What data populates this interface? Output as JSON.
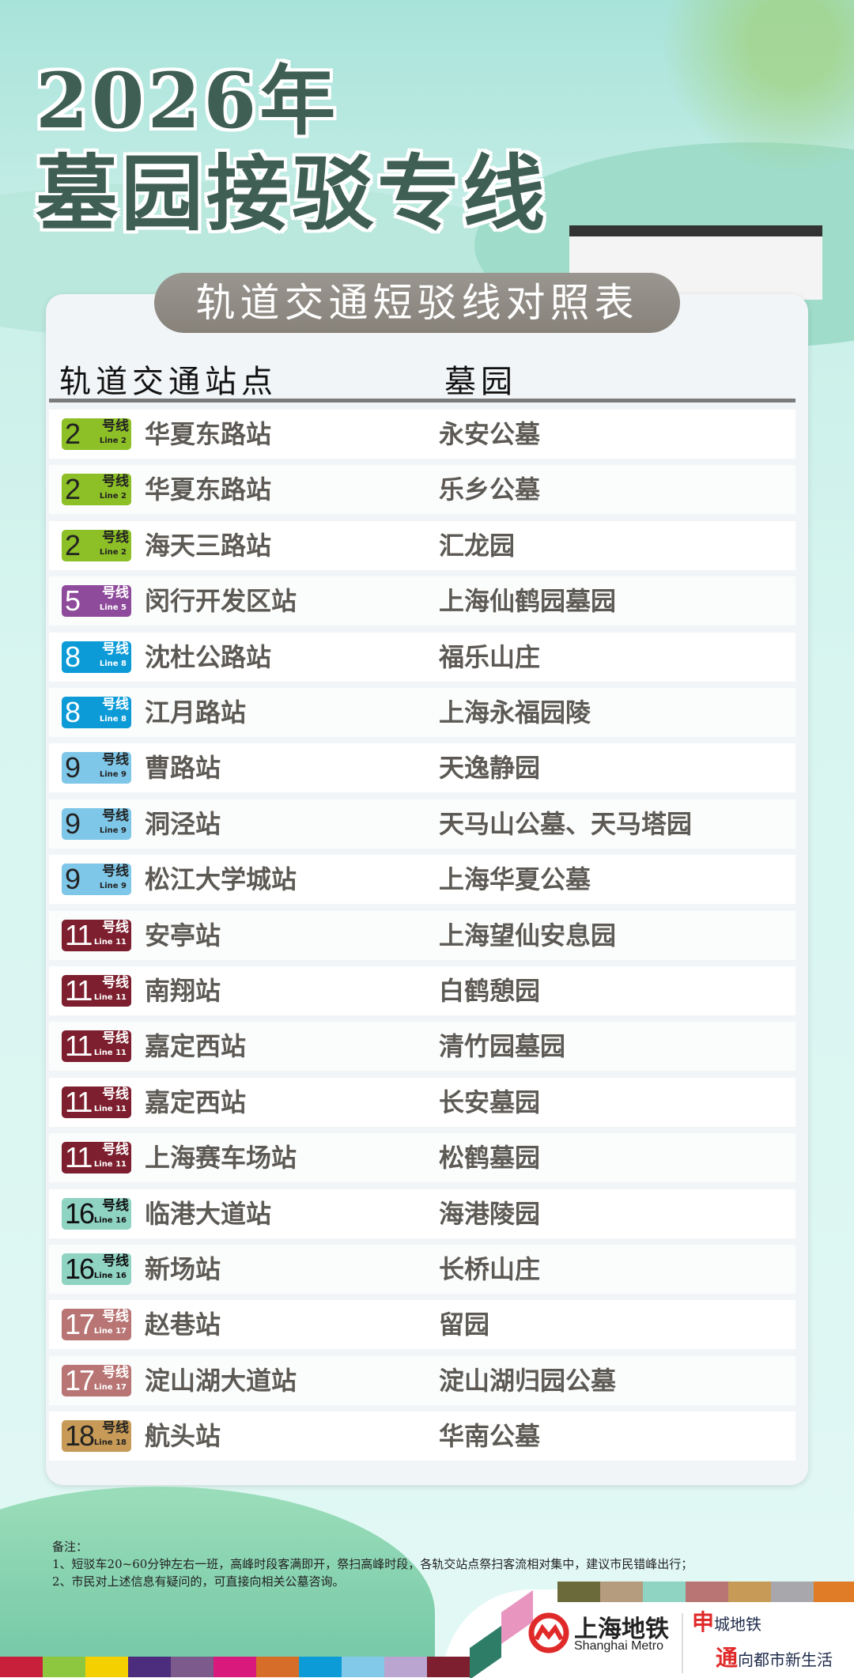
{
  "title": {
    "year": "2026年",
    "main": "墓园接驳专线"
  },
  "table": {
    "title": "轨道交通短驳线对照表",
    "col_station": "轨道交通站点",
    "col_cemetery": "墓园",
    "rows": [
      {
        "line": "2",
        "line_zh": "号线",
        "line_en": "Line 2",
        "color": "#8dbf27",
        "text": "#222",
        "station": "华夏东路站",
        "cemetery": "永安公墓"
      },
      {
        "line": "2",
        "line_zh": "号线",
        "line_en": "Line 2",
        "color": "#8dbf27",
        "text": "#222",
        "station": "华夏东路站",
        "cemetery": "乐乡公墓"
      },
      {
        "line": "2",
        "line_zh": "号线",
        "line_en": "Line 2",
        "color": "#8dbf27",
        "text": "#222",
        "station": "海天三路站",
        "cemetery": "汇龙园"
      },
      {
        "line": "5",
        "line_zh": "号线",
        "line_en": "Line 5",
        "color": "#8f4b9b",
        "text": "#fff",
        "station": "闵行开发区站",
        "cemetery": "上海仙鹤园墓园"
      },
      {
        "line": "8",
        "line_zh": "号线",
        "line_en": "Line 8",
        "color": "#0c9bd7",
        "text": "#fff",
        "station": "沈杜公路站",
        "cemetery": "福乐山庄"
      },
      {
        "line": "8",
        "line_zh": "号线",
        "line_en": "Line 8",
        "color": "#0c9bd7",
        "text": "#fff",
        "station": "江月路站",
        "cemetery": "上海永福园陵"
      },
      {
        "line": "9",
        "line_zh": "号线",
        "line_en": "Line 9",
        "color": "#7fc7e8",
        "text": "#222",
        "station": "曹路站",
        "cemetery": "天逸静园"
      },
      {
        "line": "9",
        "line_zh": "号线",
        "line_en": "Line 9",
        "color": "#7fc7e8",
        "text": "#222",
        "station": "洞泾站",
        "cemetery": "天马山公墓、天马塔园"
      },
      {
        "line": "9",
        "line_zh": "号线",
        "line_en": "Line 9",
        "color": "#7fc7e8",
        "text": "#222",
        "station": "松江大学城站",
        "cemetery": "上海华夏公墓"
      },
      {
        "line": "11",
        "line_zh": "号线",
        "line_en": "Line 11",
        "color": "#7d1f2e",
        "text": "#fff",
        "station": "安亭站",
        "cemetery": "上海望仙安息园"
      },
      {
        "line": "11",
        "line_zh": "号线",
        "line_en": "Line 11",
        "color": "#7d1f2e",
        "text": "#fff",
        "station": "南翔站",
        "cemetery": "白鹤憩园"
      },
      {
        "line": "11",
        "line_zh": "号线",
        "line_en": "Line 11",
        "color": "#7d1f2e",
        "text": "#fff",
        "station": "嘉定西站",
        "cemetery": "清竹园墓园"
      },
      {
        "line": "11",
        "line_zh": "号线",
        "line_en": "Line 11",
        "color": "#7d1f2e",
        "text": "#fff",
        "station": "嘉定西站",
        "cemetery": "长安墓园"
      },
      {
        "line": "11",
        "line_zh": "号线",
        "line_en": "Line 11",
        "color": "#7d1f2e",
        "text": "#fff",
        "station": "上海赛车场站",
        "cemetery": "松鹤墓园"
      },
      {
        "line": "16",
        "line_zh": "号线",
        "line_en": "Line 16",
        "color": "#8fd3c2",
        "text": "#111",
        "station": "临港大道站",
        "cemetery": "海港陵园"
      },
      {
        "line": "16",
        "line_zh": "号线",
        "line_en": "Line 16",
        "color": "#8fd3c2",
        "text": "#111",
        "station": "新场站",
        "cemetery": "长桥山庄"
      },
      {
        "line": "17",
        "line_zh": "号线",
        "line_en": "Line 17",
        "color": "#b87574",
        "text": "#fff",
        "station": "赵巷站",
        "cemetery": "留园"
      },
      {
        "line": "17",
        "line_zh": "号线",
        "line_en": "Line 17",
        "color": "#b87574",
        "text": "#fff",
        "station": "淀山湖大道站",
        "cemetery": "淀山湖归园公墓"
      },
      {
        "line": "18",
        "line_zh": "号线",
        "line_en": "Line 18",
        "color": "#c79b57",
        "text": "#222",
        "station": "航头站",
        "cemetery": "华南公墓"
      }
    ]
  },
  "notes": {
    "heading": "备注：",
    "items": [
      "1、短驳车20~60分钟左右一班，高峰时段客满即开，祭扫高峰时段，各轨交站点祭扫客流相对集中，建议市民错峰出行；",
      "2、市民对上述信息有疑问的，可直接向相关公墓咨询。"
    ]
  },
  "footer": {
    "logo_zh": "上海地铁",
    "logo_en": "Shanghai Metro",
    "slogan_1_big": "申",
    "slogan_1": "城地铁",
    "slogan_2_big": "通",
    "slogan_2": "向都市新生活",
    "stripe_colors": [
      "#c8203a",
      "#8dc63f",
      "#f5d000",
      "#4b2c7d",
      "#7d5a8c",
      "#d9197b",
      "#d66e2a",
      "#0c9bd7",
      "#82c8e8",
      "#b9a5cf",
      "#7d1f2e",
      "#2e7d66",
      "#e895c0",
      "#6b6a3a",
      "#b59c7e",
      "#8fd3c2",
      "#b87574",
      "#c79b57",
      "#a8a8ac",
      "#e07b27",
      "#2f8a86"
    ],
    "brand_red": "#e02a2a"
  }
}
